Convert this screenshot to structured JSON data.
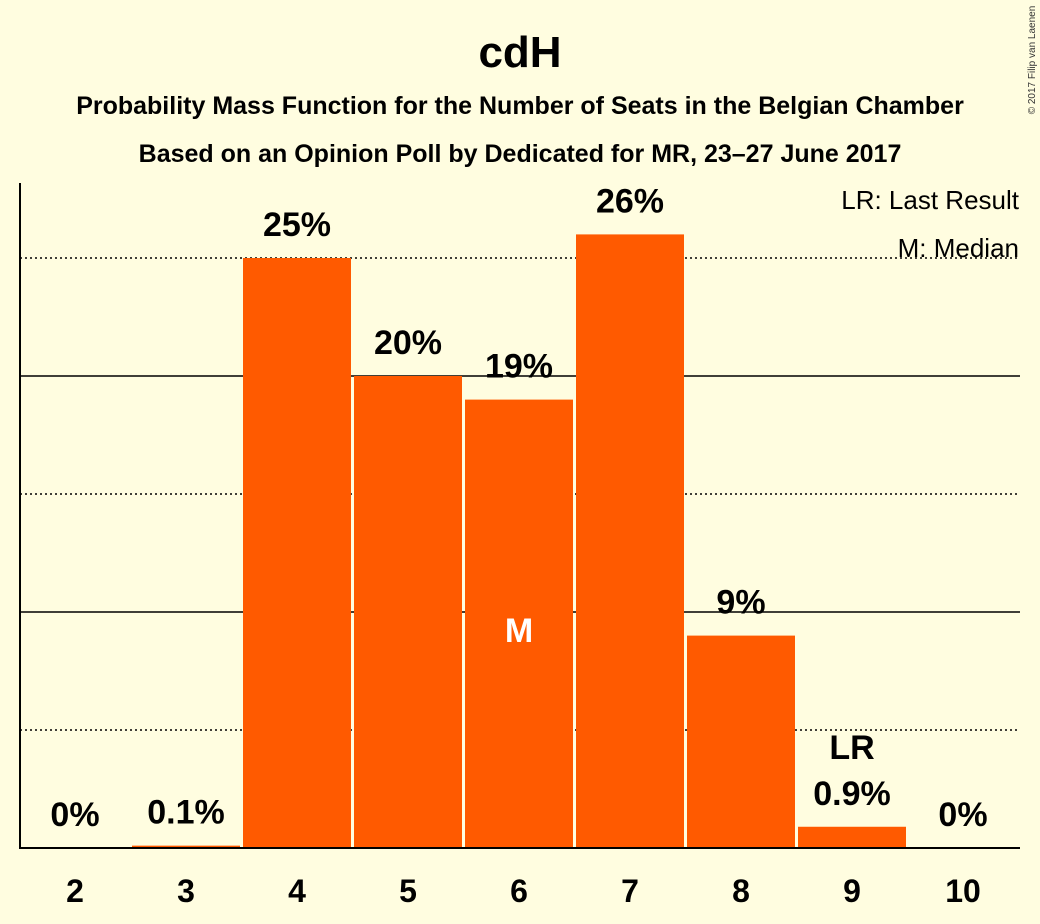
{
  "chart_data": {
    "type": "bar",
    "title": "cdH",
    "subtitle_1": "Probability Mass Function for the Number of Seats in the Belgian Chamber",
    "subtitle_2": "Based on an Opinion Poll by Dedicated for MR, 23–27 June 2017",
    "categories": [
      "2",
      "3",
      "4",
      "5",
      "6",
      "7",
      "8",
      "9",
      "10"
    ],
    "values": [
      0,
      0.1,
      25,
      20,
      19,
      26,
      9,
      0.9,
      0
    ],
    "value_labels": [
      "0%",
      "0.1%",
      "25%",
      "20%",
      "19%",
      "26%",
      "9%",
      "0.9%",
      "0%"
    ],
    "ylim": [
      0,
      28.5
    ],
    "solid_gridlines": [
      10,
      20
    ],
    "dotted_gridlines": [
      5,
      15,
      25
    ],
    "median_category": "6",
    "last_result_category": "9",
    "median_marker": "M",
    "last_result_marker": "LR",
    "legend": {
      "last_result": "LR: Last Result",
      "median": "M: Median",
      "position": "top-right"
    },
    "bar_color": "#ff5a00",
    "background_color": "#fffde0"
  },
  "copyright": "© 2017 Filip van Laenen"
}
